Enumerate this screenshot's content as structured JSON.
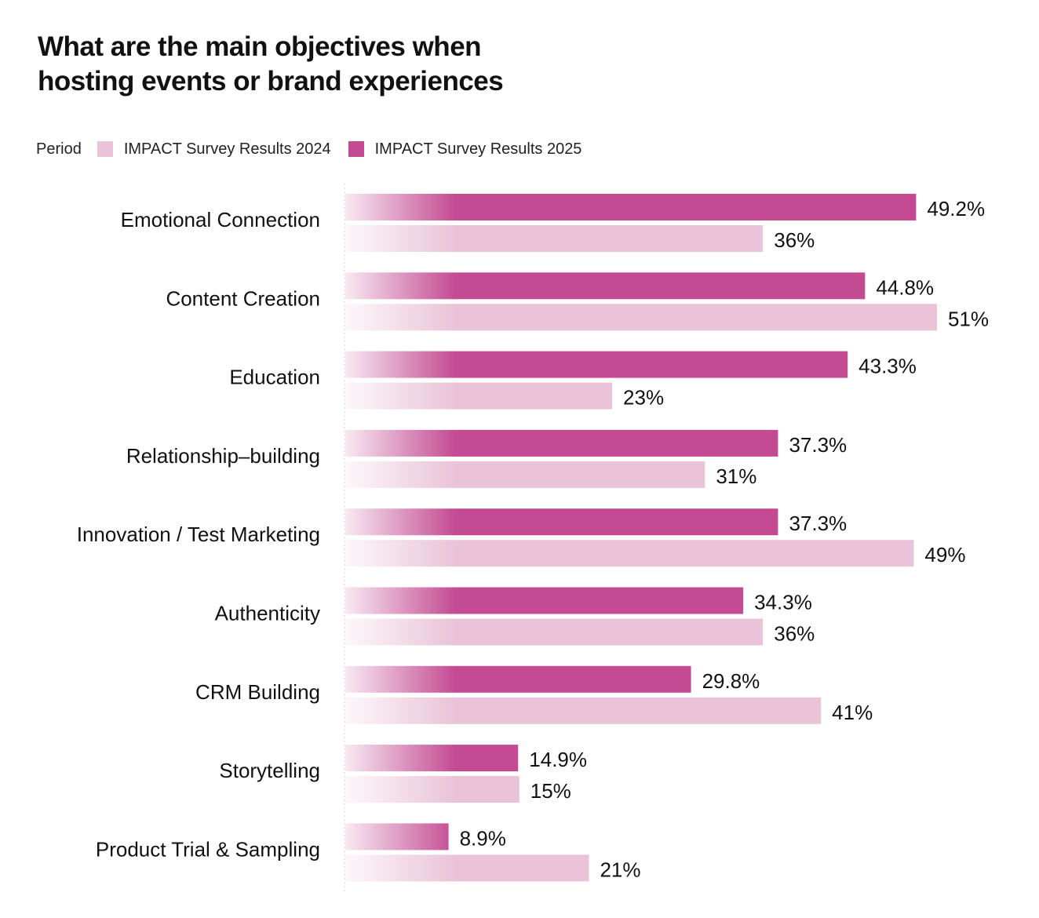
{
  "chart_data": {
    "type": "bar",
    "orientation": "horizontal",
    "title": "What are the main objectives when hosting events or brand experiences",
    "title_line1": "What are the main objectives when",
    "title_line2": "hosting events or brand experiences",
    "legend_title": "Period",
    "categories": [
      "Emotional Connection",
      "Content Creation",
      "Education",
      "Relationship–building",
      "Innovation  / Test Marketing",
      "Authenticity",
      "CRM Building",
      "Storytelling",
      "Product Trial & Sampling"
    ],
    "series": [
      {
        "name": "IMPACT Survey Results 2025",
        "color": "#c44b93",
        "values": [
          49.2,
          44.8,
          43.3,
          37.3,
          37.3,
          34.3,
          29.8,
          14.9,
          8.9
        ],
        "labels": [
          "49.2%",
          "44.8%",
          "43.3%",
          "37.3%",
          "37.3%",
          "34.3%",
          "29.8%",
          "14.9%",
          "8.9%"
        ]
      },
      {
        "name": "IMPACT Survey Results 2024",
        "color": "#eac3d8",
        "values": [
          36,
          51,
          23,
          31,
          49,
          36,
          41,
          15,
          21
        ],
        "labels": [
          "36%",
          "51%",
          "23%",
          "31%",
          "49%",
          "36%",
          "41%",
          "15%",
          "21%"
        ]
      }
    ],
    "xlim": [
      0,
      51
    ],
    "legend_order": [
      "IMPACT Survey Results 2024",
      "IMPACT Survey Results 2025"
    ],
    "legend_position": "top-left",
    "grid": false
  }
}
